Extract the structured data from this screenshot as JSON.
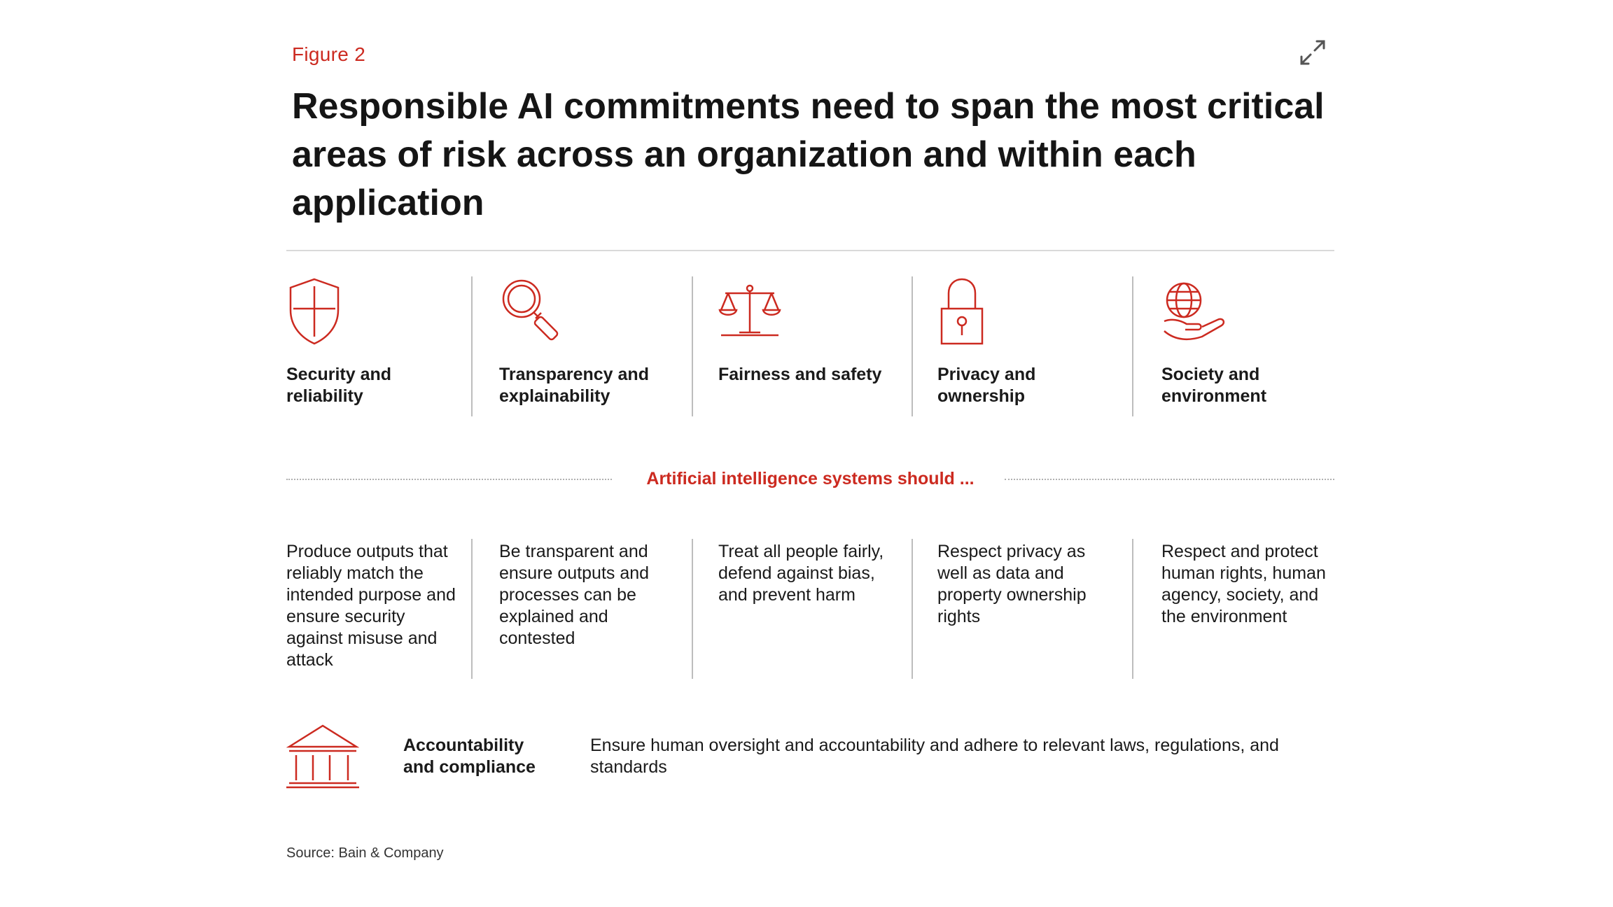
{
  "header": {
    "figure_label": "Figure 2",
    "title": "Responsible AI commitments need to span the most critical areas of risk across an organization and within each application"
  },
  "pillars": [
    {
      "icon": "shield-icon",
      "label": "Security and reliability",
      "description": "Produce outputs that reliably match the intended purpose and ensure security against misuse and attack"
    },
    {
      "icon": "magnifier-icon",
      "label": "Transparency and explainability",
      "description": "Be transparent and ensure outputs and processes can be explained and contested"
    },
    {
      "icon": "scales-icon",
      "label": "Fairness and safety",
      "description": "Treat all people fairly, defend against bias, and prevent harm"
    },
    {
      "icon": "padlock-icon",
      "label": "Privacy and ownership",
      "description": "Respect privacy as well as data and property ownership rights"
    },
    {
      "icon": "globe-hand-icon",
      "label": "Society and environment",
      "description": "Respect and protect human rights, human agency, society, and the environment"
    }
  ],
  "divider_text": "Artificial intelligence systems should ...",
  "accountability": {
    "icon": "building-icon",
    "label": "Accountability and compliance",
    "description": "Ensure human oversight and accountability and adhere to relevant laws, regulations, and standards"
  },
  "source": "Source: Bain & Company",
  "colors": {
    "accent": "#cc2a20",
    "text": "#1a1a1a",
    "separator": "#bdbdbd"
  }
}
